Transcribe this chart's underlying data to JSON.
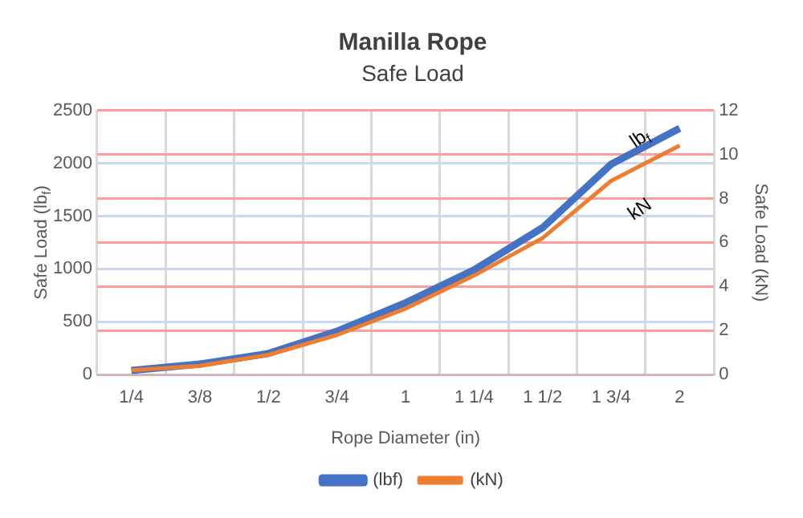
{
  "chart_data": {
    "type": "line",
    "title": "Manilla Rope",
    "subtitle": "Safe Load",
    "xlabel": "Rope Diameter (in)",
    "ylabel": "Safe Load (lb$_{f}$)",
    "y2label": "Safe Load (kN)",
    "categories": [
      "1/4",
      "3/8",
      "1/2",
      "3/4",
      "1",
      "1 1/4",
      "1 1/2",
      "1 3/4",
      "2"
    ],
    "series": [
      {
        "name": "(lbf)",
        "color": "#4472c4",
        "values": [
          40,
          100,
          200,
          410,
          680,
          990,
          1390,
          1990,
          2330
        ]
      },
      {
        "name": "(kN)",
        "color": "#ed7d31",
        "axis": "y2",
        "values": [
          0.2,
          0.4,
          0.9,
          1.8,
          3.0,
          4.5,
          6.2,
          8.8,
          10.4
        ]
      }
    ],
    "ylim": [
      0,
      2500
    ],
    "yticks": [
      0,
      500,
      1000,
      1500,
      2000,
      2500
    ],
    "y2lim": [
      0,
      12
    ],
    "y2ticks": [
      0,
      2,
      4,
      6,
      8,
      10,
      12
    ],
    "grid": true,
    "legend": "bottom",
    "marker": "none",
    "line_style": "solid",
    "annotations": [
      "lb$_{f}$",
      "kN"
    ]
  }
}
